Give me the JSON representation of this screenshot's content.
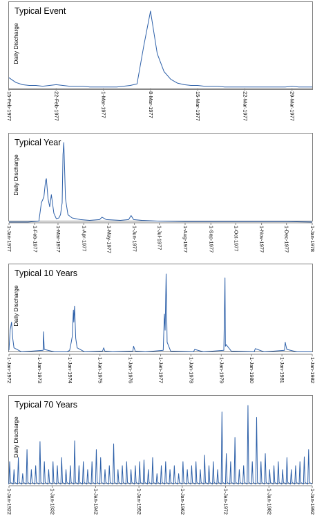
{
  "chart_data": [
    {
      "type": "line",
      "title": "Typical Event",
      "ylabel": "Daily Discharge",
      "xlabel": "",
      "grid": false,
      "color": "#2c5fa8",
      "tick_labels": [
        "15-Feb-1977",
        "22-Feb-1977",
        "1-Mar-1977",
        "8-Mar-1977",
        "15-Mar-1977",
        "22-Mar-1977",
        "29-Mar-1977"
      ],
      "x": [
        "15-Feb-1977",
        "16-Feb-1977",
        "17-Feb-1977",
        "18-Feb-1977",
        "19-Feb-1977",
        "20-Feb-1977",
        "21-Feb-1977",
        "22-Feb-1977",
        "23-Feb-1977",
        "24-Feb-1977",
        "25-Feb-1977",
        "26-Feb-1977",
        "27-Feb-1977",
        "28-Feb-1977",
        "1-Mar-1977",
        "2-Mar-1977",
        "3-Mar-1977",
        "4-Mar-1977",
        "5-Mar-1977",
        "6-Mar-1977",
        "7-Mar-1977",
        "8-Mar-1977",
        "9-Mar-1977",
        "10-Mar-1977",
        "11-Mar-1977",
        "12-Mar-1977",
        "13-Mar-1977",
        "14-Mar-1977",
        "15-Mar-1977",
        "16-Mar-1977",
        "17-Mar-1977",
        "18-Mar-1977",
        "19-Mar-1977",
        "20-Mar-1977",
        "21-Mar-1977",
        "22-Mar-1977",
        "23-Mar-1977",
        "24-Mar-1977",
        "25-Mar-1977",
        "26-Mar-1977",
        "27-Mar-1977",
        "28-Mar-1977",
        "29-Mar-1977",
        "30-Mar-1977",
        "31-Mar-1977",
        "1-Apr-1977"
      ],
      "y": [
        0.14,
        0.08,
        0.05,
        0.04,
        0.04,
        0.03,
        0.04,
        0.05,
        0.04,
        0.03,
        0.03,
        0.03,
        0.02,
        0.02,
        0.02,
        0.02,
        0.02,
        0.03,
        0.04,
        0.06,
        0.55,
        1.0,
        0.45,
        0.22,
        0.12,
        0.07,
        0.05,
        0.04,
        0.04,
        0.03,
        0.03,
        0.03,
        0.02,
        0.02,
        0.02,
        0.02,
        0.02,
        0.02,
        0.02,
        0.02,
        0.02,
        0.02,
        0.03,
        0.02,
        0.02,
        0.02
      ],
      "xlim": [
        "15-Feb-1977",
        "1-Apr-1977"
      ],
      "ylim": [
        0,
        1.0
      ]
    },
    {
      "type": "line",
      "title": "Typical Year",
      "ylabel": "Daily Discharge",
      "xlabel": "",
      "grid": false,
      "color": "#2c5fa8",
      "tick_labels": [
        "1-Jan-1977",
        "1-Feb-1977",
        "1-Mar-1977",
        "1-Apr-1977",
        "1-May-1977",
        "1-Jun-1977",
        "1-Jul-1977",
        "1-Aug-1977",
        "1-Sep-1977",
        "1-Oct-1977",
        "1-Nov-1977",
        "1-Dec-1977",
        "1-Jan-1978"
      ],
      "x": [
        "1-Jan-1977",
        "24-Jan-1977",
        "6-Feb-1977",
        "9-Feb-1977",
        "12-Feb-1977",
        "14-Feb-1977",
        "15-Feb-1977",
        "17-Feb-1977",
        "19-Feb-1977",
        "21-Feb-1977",
        "24-Feb-1977",
        "27-Feb-1977",
        "2-Mar-1977",
        "4-Mar-1977",
        "6-Mar-1977",
        "7-Mar-1977",
        "8-Mar-1977",
        "10-Mar-1977",
        "13-Mar-1977",
        "18-Mar-1977",
        "28-Mar-1977",
        "8-Apr-1977",
        "20-Apr-1977",
        "23-Apr-1977",
        "28-Apr-1977",
        "15-May-1977",
        "25-May-1977",
        "28-May-1977",
        "31-May-1977",
        "10-Jun-1977",
        "1-Jul-1977",
        "1-Aug-1977",
        "1-Sep-1977",
        "1-Oct-1977",
        "1-Nov-1977",
        "1-Dec-1977",
        "1-Jan-1978"
      ],
      "y": [
        0.01,
        0.01,
        0.02,
        0.25,
        0.32,
        0.52,
        0.55,
        0.3,
        0.2,
        0.35,
        0.12,
        0.05,
        0.06,
        0.1,
        0.25,
        0.85,
        1.0,
        0.3,
        0.1,
        0.06,
        0.04,
        0.03,
        0.04,
        0.07,
        0.04,
        0.03,
        0.04,
        0.09,
        0.04,
        0.03,
        0.02,
        0.015,
        0.015,
        0.015,
        0.015,
        0.015,
        0.01
      ],
      "xlim": [
        "1-Jan-1977",
        "1-Jan-1978"
      ],
      "ylim": [
        0,
        1.0
      ]
    },
    {
      "type": "line",
      "title": "Typical 10 Years",
      "ylabel": "Daily Discharge",
      "xlabel": "",
      "grid": false,
      "color": "#2c5fa8",
      "tick_labels": [
        "1-Jan-1972",
        "1-Jan-1973",
        "1-Jan-1974",
        "1-Jan-1975",
        "1-Jan-1976",
        "1-Jan-1977",
        "1-Jan-1978",
        "1-Jan-1979",
        "1-Jan-1980",
        "1-Jan-1981",
        "1-Jan-1982"
      ],
      "x": [
        "1-Jan-1972",
        "15-Jan-1972",
        "1-Feb-1972",
        "15-Feb-1972",
        "1-Mar-1972",
        "1-Jun-1972",
        "15-Feb-1973",
        "20-Feb-1973",
        "1-Mar-1973",
        "1-Jul-1973",
        "1-Dec-1973",
        "1-Jan-1974",
        "20-Jan-1974",
        "1-Feb-1974",
        "15-Feb-1974",
        "20-Feb-1974",
        "1-Mar-1974",
        "15-Mar-1974",
        "1-Apr-1974",
        "1-Jul-1974",
        "1-Feb-1975",
        "15-Feb-1975",
        "1-Mar-1975",
        "1-Jun-1975",
        "1-Feb-1976",
        "10-Feb-1976",
        "1-Mar-1976",
        "1-Jul-1976",
        "1-Feb-1977",
        "15-Feb-1977",
        "24-Feb-1977",
        "8-Mar-1977",
        "20-Mar-1977",
        "1-May-1977",
        "1-Feb-1978",
        "15-Feb-1978",
        "1-Jun-1978",
        "1-Feb-1979",
        "15-Feb-1979",
        "20-Feb-1979",
        "1-Mar-1979",
        "1-May-1979",
        "1-Feb-1980",
        "15-Feb-1980",
        "1-Jun-1980",
        "1-Feb-1981",
        "10-Feb-1981",
        "15-Feb-1981",
        "1-Mar-1981",
        "1-Jul-1981",
        "1-Jan-1982"
      ],
      "y": [
        0.05,
        0.3,
        0.4,
        0.2,
        0.08,
        0.03,
        0.05,
        0.28,
        0.06,
        0.03,
        0.03,
        0.05,
        0.15,
        0.22,
        0.55,
        0.4,
        0.6,
        0.2,
        0.08,
        0.03,
        0.04,
        0.08,
        0.04,
        0.03,
        0.04,
        0.1,
        0.04,
        0.03,
        0.05,
        0.5,
        0.3,
        1.0,
        0.15,
        0.04,
        0.03,
        0.06,
        0.03,
        0.05,
        0.95,
        0.1,
        0.12,
        0.04,
        0.03,
        0.07,
        0.03,
        0.05,
        0.15,
        0.12,
        0.06,
        0.03,
        0.03
      ],
      "xlim": [
        "1-Jan-1972",
        "1-Jan-1982"
      ],
      "ylim": [
        0,
        1.0
      ]
    },
    {
      "type": "line",
      "title": "Typical 70 Years",
      "ylabel": "Daily Discharge",
      "xlabel": "",
      "grid": false,
      "color": "#2c5fa8",
      "tick_labels": [
        "1-Jan-1922",
        "1-Jan-1932",
        "1-Jan-1942",
        "1-Jan-1952",
        "1-Jan-1962",
        "1-Jan-1972",
        "1-Jan-1982",
        "1-Jan-1992"
      ],
      "peaks": [
        {
          "x": "1-Mar-1922",
          "y": 0.3
        },
        {
          "x": "1-Mar-1923",
          "y": 0.2
        },
        {
          "x": "1-Mar-1924",
          "y": 0.35
        },
        {
          "x": "1-Mar-1925",
          "y": 0.15
        },
        {
          "x": "1-Mar-1926",
          "y": 0.45
        },
        {
          "x": "1-Mar-1927",
          "y": 0.2
        },
        {
          "x": "1-Mar-1928",
          "y": 0.25
        },
        {
          "x": "1-Mar-1929",
          "y": 0.55
        },
        {
          "x": "1-Mar-1930",
          "y": 0.3
        },
        {
          "x": "1-Mar-1931",
          "y": 0.2
        },
        {
          "x": "1-Mar-1932",
          "y": 0.3
        },
        {
          "x": "1-Mar-1933",
          "y": 0.25
        },
        {
          "x": "1-Mar-1934",
          "y": 0.35
        },
        {
          "x": "1-Mar-1935",
          "y": 0.2
        },
        {
          "x": "1-Mar-1936",
          "y": 0.25
        },
        {
          "x": "1-Mar-1937",
          "y": 0.56
        },
        {
          "x": "1-Mar-1938",
          "y": 0.25
        },
        {
          "x": "1-Mar-1939",
          "y": 0.3
        },
        {
          "x": "1-Mar-1940",
          "y": 0.2
        },
        {
          "x": "1-Mar-1941",
          "y": 0.3
        },
        {
          "x": "1-Mar-1942",
          "y": 0.45
        },
        {
          "x": "1-Mar-1943",
          "y": 0.35
        },
        {
          "x": "1-Mar-1944",
          "y": 0.2
        },
        {
          "x": "1-Mar-1945",
          "y": 0.25
        },
        {
          "x": "1-Mar-1946",
          "y": 0.52
        },
        {
          "x": "1-Mar-1947",
          "y": 0.2
        },
        {
          "x": "1-Mar-1948",
          "y": 0.25
        },
        {
          "x": "1-Mar-1949",
          "y": 0.3
        },
        {
          "x": "1-Mar-1950",
          "y": 0.2
        },
        {
          "x": "1-Mar-1951",
          "y": 0.25
        },
        {
          "x": "1-Mar-1952",
          "y": 0.3
        },
        {
          "x": "1-Mar-1953",
          "y": 0.32
        },
        {
          "x": "1-Mar-1954",
          "y": 0.2
        },
        {
          "x": "1-Mar-1955",
          "y": 0.35
        },
        {
          "x": "1-Mar-1956",
          "y": 0.15
        },
        {
          "x": "1-Mar-1957",
          "y": 0.25
        },
        {
          "x": "1-Mar-1958",
          "y": 0.3
        },
        {
          "x": "1-Mar-1959",
          "y": 0.2
        },
        {
          "x": "1-Mar-1960",
          "y": 0.25
        },
        {
          "x": "1-Mar-1961",
          "y": 0.15
        },
        {
          "x": "1-Mar-1962",
          "y": 0.3
        },
        {
          "x": "1-Mar-1963",
          "y": 0.2
        },
        {
          "x": "1-Mar-1964",
          "y": 0.25
        },
        {
          "x": "1-Mar-1965",
          "y": 0.3
        },
        {
          "x": "1-Mar-1966",
          "y": 0.2
        },
        {
          "x": "1-Mar-1967",
          "y": 0.38
        },
        {
          "x": "1-Mar-1968",
          "y": 0.25
        },
        {
          "x": "1-Mar-1969",
          "y": 0.3
        },
        {
          "x": "1-Mar-1970",
          "y": 0.2
        },
        {
          "x": "1-Mar-1971",
          "y": 0.92
        },
        {
          "x": "1-Mar-1972",
          "y": 0.4
        },
        {
          "x": "1-Mar-1973",
          "y": 0.3
        },
        {
          "x": "1-Mar-1974",
          "y": 0.6
        },
        {
          "x": "1-Mar-1975",
          "y": 0.2
        },
        {
          "x": "1-Mar-1976",
          "y": 0.25
        },
        {
          "x": "1-Mar-1977",
          "y": 1.0
        },
        {
          "x": "1-Mar-1978",
          "y": 0.3
        },
        {
          "x": "1-Mar-1979",
          "y": 0.85
        },
        {
          "x": "1-Mar-1980",
          "y": 0.3
        },
        {
          "x": "1-Mar-1981",
          "y": 0.4
        },
        {
          "x": "1-Mar-1982",
          "y": 0.2
        },
        {
          "x": "1-Mar-1983",
          "y": 0.25
        },
        {
          "x": "1-Mar-1984",
          "y": 0.3
        },
        {
          "x": "1-Mar-1985",
          "y": 0.2
        },
        {
          "x": "1-Mar-1986",
          "y": 0.35
        },
        {
          "x": "1-Mar-1987",
          "y": 0.2
        },
        {
          "x": "1-Mar-1988",
          "y": 0.25
        },
        {
          "x": "1-Mar-1989",
          "y": 0.3
        },
        {
          "x": "1-Mar-1990",
          "y": 0.36
        },
        {
          "x": "1-Mar-1991",
          "y": 0.45
        }
      ],
      "baseline": 0.02,
      "xlim": [
        "1-Jan-1922",
        "1-Jan-1992"
      ],
      "ylim": [
        0,
        1.0
      ]
    }
  ]
}
